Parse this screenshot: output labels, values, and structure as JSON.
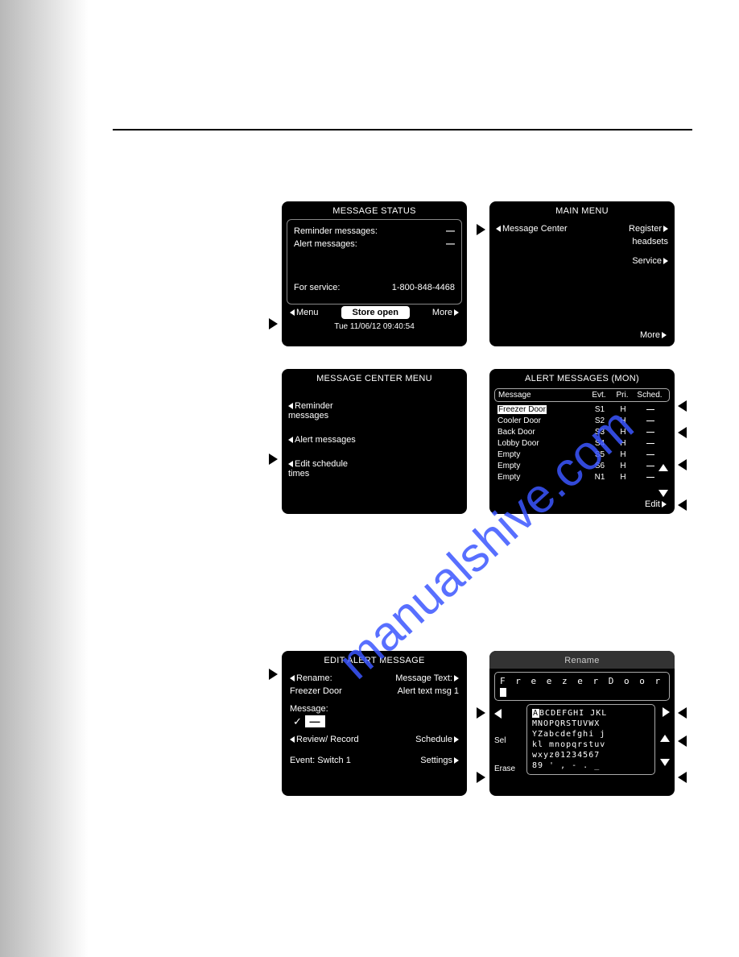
{
  "watermark": "manualshive.com",
  "s1": {
    "title": "MESSAGE STATUS",
    "rows": [
      {
        "label": "Reminder messages:",
        "value": "—"
      },
      {
        "label": "Alert messages:",
        "value": "—"
      }
    ],
    "service_label": "For service:",
    "service_phone": "1-800-848-4468",
    "menu": "Menu",
    "store": "Store open",
    "more": "More",
    "datetime": "Tue 11/06/12   09:40:54"
  },
  "s2": {
    "title": "MAIN MENU",
    "left": "Message Center",
    "right1": "Register",
    "right2": "headsets",
    "right3": "Service",
    "more": "More"
  },
  "s3": {
    "title": "MESSAGE CENTER MENU",
    "i1": "Reminder messages",
    "i2": "Alert messages",
    "i3": "Edit schedule times"
  },
  "s4": {
    "title": "ALERT MESSAGES (MON)",
    "headers": {
      "c1": "Message",
      "c2": "Evt.",
      "c3": "Pri.",
      "c4": "Sched."
    },
    "rows": [
      {
        "c1": "Freezer Door",
        "c2": "S1",
        "c3": "H",
        "c4": "—",
        "hl": true
      },
      {
        "c1": "Cooler Door",
        "c2": "S2",
        "c3": "H",
        "c4": "—"
      },
      {
        "c1": "Back Door",
        "c2": "S3",
        "c3": "H",
        "c4": "—"
      },
      {
        "c1": "Lobby Door",
        "c2": "S4",
        "c3": "H",
        "c4": "—"
      },
      {
        "c1": "Empty",
        "c2": "S5",
        "c3": "H",
        "c4": "—"
      },
      {
        "c1": "Empty",
        "c2": "S6",
        "c3": "H",
        "c4": "—"
      },
      {
        "c1": "Empty",
        "c2": "N1",
        "c3": "H",
        "c4": "—"
      }
    ],
    "edit": "Edit"
  },
  "s5": {
    "title": "EDIT ALERT MESSAGE",
    "rename": "Rename:",
    "mtext": "Message Text:",
    "name": "Freezer Door",
    "atext": "Alert text msg 1",
    "msg": "Message:",
    "review": "Review/ Record",
    "schedule": "Schedule",
    "event": "Event: Switch 1",
    "settings": "Settings"
  },
  "s6": {
    "title": "Rename",
    "input": "F r e e z e r   D o o r",
    "kb": [
      "ABCDEFGHI JKL",
      "MNOPQRSTUVWX",
      "YZabcdefghi j",
      "kl mnopqrstuv",
      "wxyz01234567",
      "89 ' , - . _"
    ],
    "sel": "Sel",
    "erase": "Erase"
  }
}
